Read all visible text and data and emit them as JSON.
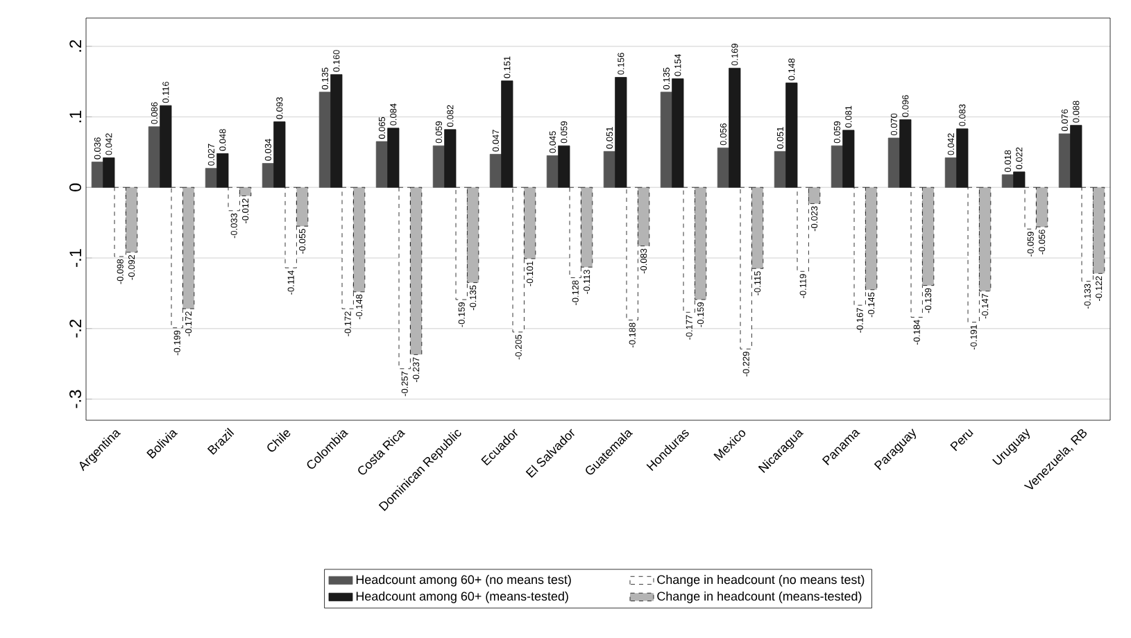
{
  "chart_data": {
    "type": "bar",
    "categories": [
      "Argentina",
      "Bolivia",
      "Brazil",
      "Chile",
      "Colombia",
      "Costa Rica",
      "Dominican Republic",
      "Ecuador",
      "El Salvador",
      "Guatemala",
      "Honduras",
      "Mexico",
      "Nicaragua",
      "Panama",
      "Paraguay",
      "Peru",
      "Uruguay",
      "Venezuela, RB"
    ],
    "series": [
      {
        "name": "Headcount among 60+ (no means test)",
        "color": "#555555",
        "values": [
          0.036,
          0.086,
          0.027,
          0.034,
          0.135,
          0.065,
          0.059,
          0.047,
          0.045,
          0.051,
          0.135,
          0.056,
          0.051,
          0.059,
          0.07,
          0.042,
          0.018,
          0.076
        ],
        "value_labels": [
          "0.036",
          "0.086",
          "0.027",
          "0.034",
          "0.135",
          "0.065",
          "0.059",
          "0.047",
          "0.045",
          "0.051",
          "0.135",
          "0.056",
          "0.051",
          "0.059",
          "0.070",
          "0.042",
          "0.018",
          "0.076"
        ]
      },
      {
        "name": "Headcount among 60+ (means-tested)",
        "color": "#1a1a1a",
        "values": [
          0.042,
          0.116,
          0.048,
          0.093,
          0.16,
          0.084,
          0.082,
          0.151,
          0.059,
          0.156,
          0.154,
          0.169,
          0.148,
          0.081,
          0.096,
          0.083,
          0.022,
          0.088
        ],
        "value_labels": [
          "0.042",
          "0.116",
          "0.048",
          "0.093",
          "0.160",
          "0.084",
          "0.082",
          "0.151",
          "0.059",
          "0.156",
          "0.154",
          "0.169",
          "0.148",
          "0.081",
          "0.096",
          "0.083",
          "0.022",
          "0.088"
        ]
      },
      {
        "name": "Change in headcount (no means test)",
        "color": "#ffffff",
        "line_style": "dashed",
        "values": [
          -0.098,
          -0.199,
          -0.033,
          -0.114,
          -0.172,
          -0.257,
          -0.159,
          -0.205,
          -0.128,
          -0.188,
          -0.177,
          -0.229,
          -0.119,
          -0.167,
          -0.184,
          -0.191,
          -0.059,
          -0.133
        ],
        "value_labels": [
          "-0.098",
          "-0.199",
          "-0.033",
          "-0.114",
          "-0.172",
          "-0.257",
          "-0.159",
          "-0.205",
          "-0.128",
          "-0.188",
          "-0.177",
          "-0.229",
          "-0.119",
          "-0.167",
          "-0.184",
          "-0.191",
          "-0.059",
          "-0.133"
        ]
      },
      {
        "name": "Change in headcount (means-tested)",
        "color": "#b4b4b4",
        "line_style": "dashed",
        "values": [
          -0.092,
          -0.172,
          -0.012,
          -0.055,
          -0.148,
          -0.237,
          -0.135,
          -0.101,
          -0.113,
          -0.083,
          -0.159,
          -0.115,
          -0.023,
          -0.145,
          -0.139,
          -0.147,
          -0.056,
          -0.122
        ],
        "value_labels": [
          "-0.092",
          "-0.172",
          "-0.012",
          "-0.055",
          "-0.148",
          "-0.237",
          "-0.135",
          "-0.101",
          "-0.113",
          "-0.083",
          "-0.159",
          "-0.115",
          "-0.023",
          "-0.145",
          "-0.139",
          "-0.147",
          "-0.056",
          "-0.122"
        ]
      }
    ],
    "ylim": [
      -0.33,
      0.24
    ],
    "yticks": [
      {
        "value": -0.3,
        "label": "-.3"
      },
      {
        "value": -0.2,
        "label": "-.2"
      },
      {
        "value": -0.1,
        "label": "-.1"
      },
      0,
      {
        "value": 0.1,
        "label": ".1"
      },
      {
        "value": 0.2,
        "label": ".2"
      }
    ],
    "grid": "y",
    "legend": "bottom"
  }
}
